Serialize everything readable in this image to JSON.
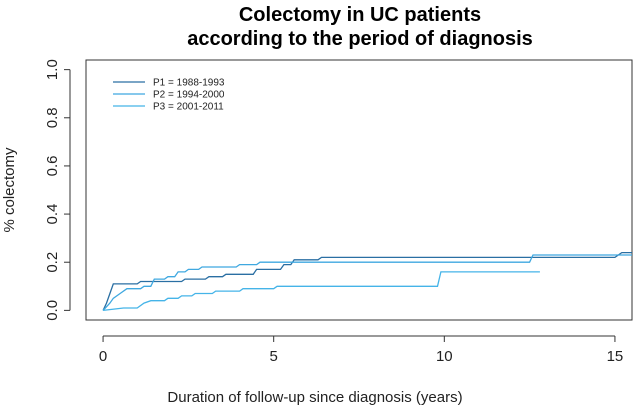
{
  "chart_data": {
    "type": "line",
    "title": [
      "Colectomy in UC patients",
      "according to the period of diagnosis"
    ],
    "xlabel": "Duration of follow-up since diagnosis (years)",
    "ylabel": "% colectomy",
    "xlim": [
      -0.5,
      15.5
    ],
    "ylim": [
      -0.04,
      1.04
    ],
    "x_ticks": [
      0,
      5,
      10,
      15
    ],
    "y_ticks": [
      0.0,
      0.2,
      0.4,
      0.6,
      0.8,
      1.0
    ],
    "x_tick_labels": [
      "0",
      "5",
      "10",
      "15"
    ],
    "y_tick_labels": [
      "0.0",
      "0.2",
      "0.4",
      "0.6",
      "0.8",
      "1.0"
    ],
    "grid": false,
    "legend_position": "top-left",
    "step": true,
    "series": [
      {
        "name": "P1 = 1988-1993",
        "color": "#2a6fa3",
        "points": [
          [
            0,
            0
          ],
          [
            0.1,
            0.03
          ],
          [
            0.2,
            0.07
          ],
          [
            0.3,
            0.11
          ],
          [
            1.0,
            0.11
          ],
          [
            1.1,
            0.12
          ],
          [
            2.3,
            0.12
          ],
          [
            2.4,
            0.13
          ],
          [
            3.0,
            0.13
          ],
          [
            3.1,
            0.14
          ],
          [
            3.5,
            0.14
          ],
          [
            3.6,
            0.15
          ],
          [
            4.4,
            0.15
          ],
          [
            4.5,
            0.17
          ],
          [
            5.2,
            0.17
          ],
          [
            5.3,
            0.19
          ],
          [
            5.5,
            0.19
          ],
          [
            5.6,
            0.21
          ],
          [
            6.3,
            0.21
          ],
          [
            6.4,
            0.22
          ],
          [
            15.0,
            0.22
          ],
          [
            15.2,
            0.24
          ],
          [
            15.5,
            0.24
          ]
        ]
      },
      {
        "name": "P2 = 1994-2000",
        "color": "#3fa8e0",
        "points": [
          [
            0,
            0
          ],
          [
            0.2,
            0.03
          ],
          [
            0.3,
            0.05
          ],
          [
            0.5,
            0.07
          ],
          [
            0.7,
            0.09
          ],
          [
            1.1,
            0.09
          ],
          [
            1.2,
            0.1
          ],
          [
            1.4,
            0.1
          ],
          [
            1.5,
            0.13
          ],
          [
            1.8,
            0.13
          ],
          [
            1.9,
            0.14
          ],
          [
            2.1,
            0.14
          ],
          [
            2.2,
            0.16
          ],
          [
            2.4,
            0.16
          ],
          [
            2.5,
            0.17
          ],
          [
            2.8,
            0.17
          ],
          [
            2.9,
            0.18
          ],
          [
            3.9,
            0.18
          ],
          [
            4.0,
            0.19
          ],
          [
            4.5,
            0.19
          ],
          [
            4.6,
            0.2
          ],
          [
            12.5,
            0.2
          ],
          [
            12.6,
            0.23
          ],
          [
            15.5,
            0.23
          ]
        ]
      },
      {
        "name": "P3 = 2001-2011",
        "color": "#45b4e8",
        "points": [
          [
            0,
            0
          ],
          [
            0.6,
            0.01
          ],
          [
            1.0,
            0.01
          ],
          [
            1.2,
            0.03
          ],
          [
            1.4,
            0.04
          ],
          [
            1.8,
            0.04
          ],
          [
            1.9,
            0.05
          ],
          [
            2.2,
            0.05
          ],
          [
            2.3,
            0.06
          ],
          [
            2.6,
            0.06
          ],
          [
            2.7,
            0.07
          ],
          [
            3.2,
            0.07
          ],
          [
            3.3,
            0.08
          ],
          [
            4.0,
            0.08
          ],
          [
            4.1,
            0.09
          ],
          [
            5.0,
            0.09
          ],
          [
            5.1,
            0.1
          ],
          [
            9.8,
            0.1
          ],
          [
            9.9,
            0.16
          ],
          [
            12.8,
            0.16
          ]
        ]
      }
    ]
  }
}
